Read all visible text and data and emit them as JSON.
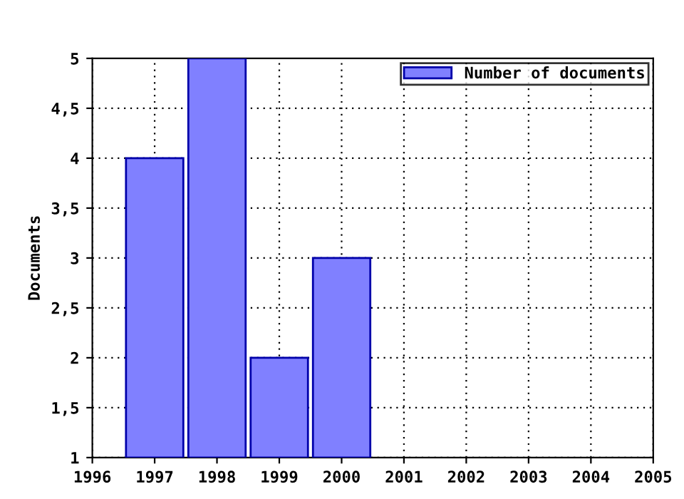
{
  "chart_data": {
    "type": "bar",
    "ylabel": "Documents",
    "x": [
      1997,
      1998,
      1999,
      2000
    ],
    "series": [
      {
        "name": "Number of documents",
        "color": "#8080ff",
        "values": [
          4,
          5,
          2,
          3
        ]
      }
    ],
    "xlim": [
      1996,
      2005
    ],
    "xticks": [
      1996,
      1997,
      1998,
      1999,
      2000,
      2001,
      2002,
      2003,
      2004,
      2005
    ],
    "ylim": [
      1,
      5
    ],
    "yticks": [
      1,
      {
        "value": 1.5,
        "label": "1,5"
      },
      2,
      {
        "value": 2.5,
        "label": "2,5"
      },
      3,
      {
        "value": 3.5,
        "label": "3,5"
      },
      4,
      {
        "value": 4.5,
        "label": "4,5"
      },
      5
    ],
    "grid": true,
    "legend": "top right"
  }
}
